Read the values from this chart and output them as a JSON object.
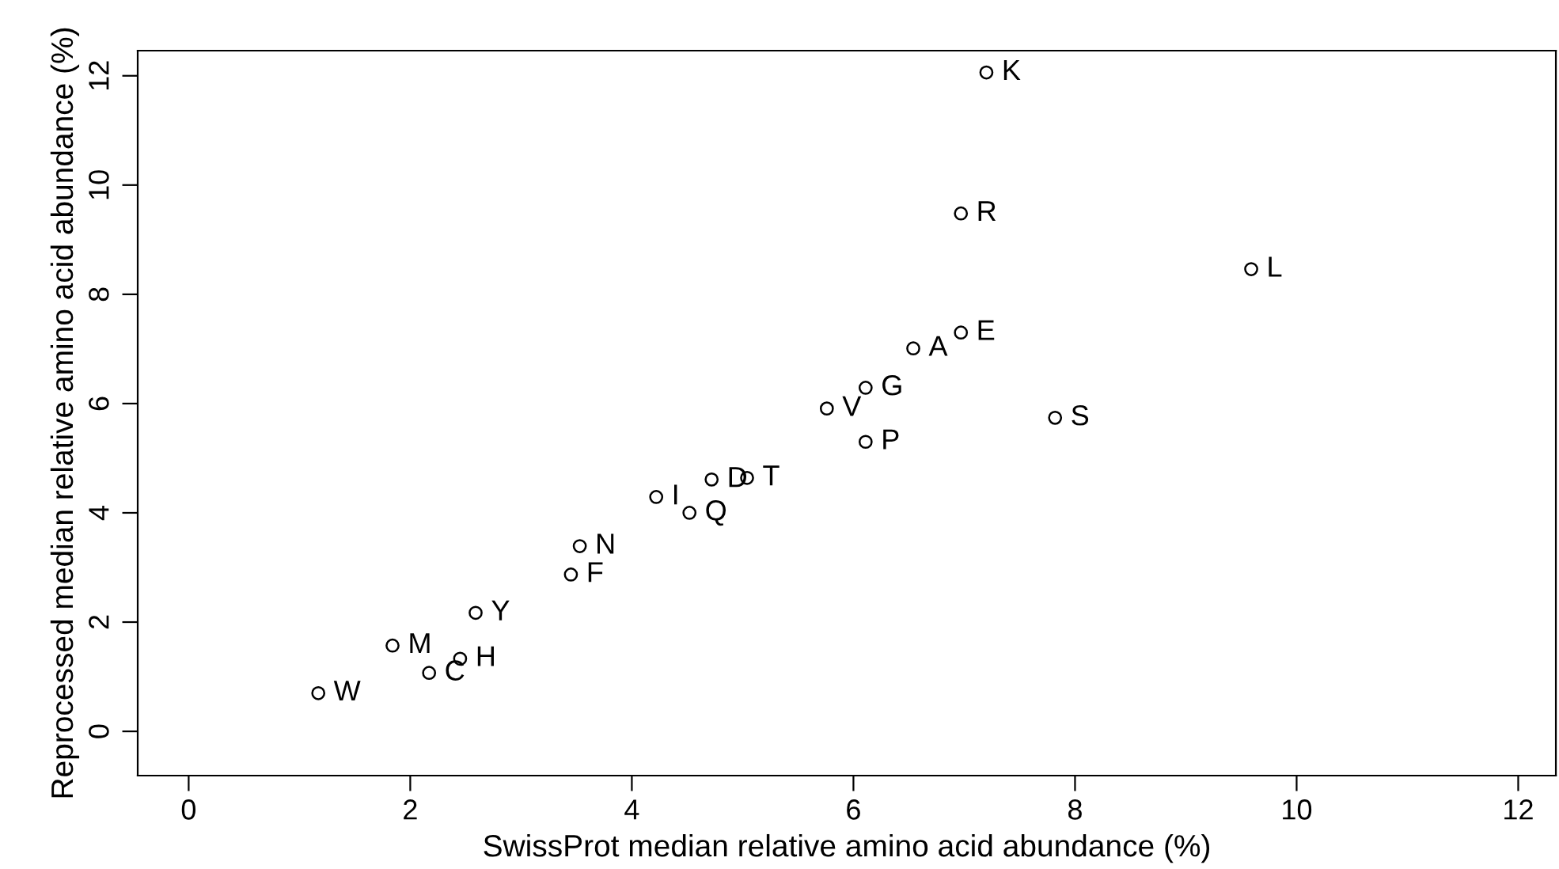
{
  "chart_data": {
    "type": "scatter",
    "xlabel": "SwissProt median relative amino acid abundance (%)",
    "ylabel": "Reprocessed median relative amino acid abundance (%)",
    "x": [
      7.2,
      6.97,
      9.59,
      6.97,
      6.54,
      6.11,
      5.76,
      7.82,
      6.11,
      4.72,
      5.04,
      4.22,
      4.52,
      3.53,
      3.45,
      2.59,
      1.84,
      2.45,
      2.17,
      1.17
    ],
    "values": [
      12.06,
      9.48,
      8.46,
      7.3,
      7.01,
      6.29,
      5.91,
      5.74,
      5.3,
      4.61,
      4.64,
      4.29,
      4.0,
      3.39,
      2.87,
      2.17,
      1.57,
      1.33,
      1.07,
      0.7
    ],
    "color": "#000000",
    "marker": "circle",
    "annotations": [
      {
        "text": "K",
        "x": 7.2,
        "y": 12.06
      },
      {
        "text": "R",
        "x": 6.97,
        "y": 9.48
      },
      {
        "text": "L",
        "x": 9.59,
        "y": 8.46
      },
      {
        "text": "E",
        "x": 6.97,
        "y": 7.3
      },
      {
        "text": "A",
        "x": 6.54,
        "y": 7.01
      },
      {
        "text": "G",
        "x": 6.11,
        "y": 6.29
      },
      {
        "text": "V",
        "x": 5.76,
        "y": 5.91
      },
      {
        "text": "S",
        "x": 7.82,
        "y": 5.74
      },
      {
        "text": "P",
        "x": 6.11,
        "y": 5.3
      },
      {
        "text": "D",
        "x": 4.72,
        "y": 4.61
      },
      {
        "text": "T",
        "x": 5.04,
        "y": 4.64
      },
      {
        "text": "I",
        "x": 4.22,
        "y": 4.29
      },
      {
        "text": "Q",
        "x": 4.52,
        "y": 4.0
      },
      {
        "text": "N",
        "x": 3.53,
        "y": 3.39
      },
      {
        "text": "F",
        "x": 3.45,
        "y": 2.87
      },
      {
        "text": "Y",
        "x": 2.59,
        "y": 2.17
      },
      {
        "text": "M",
        "x": 1.84,
        "y": 1.57
      },
      {
        "text": "H",
        "x": 2.45,
        "y": 1.33
      },
      {
        "text": "C",
        "x": 2.17,
        "y": 1.07
      },
      {
        "text": "W",
        "x": 1.17,
        "y": 0.7
      }
    ],
    "xlim": [
      -0.46,
      12.34
    ],
    "ylim": [
      -0.81,
      12.46
    ],
    "xticks": [
      0,
      2,
      4,
      6,
      8,
      10,
      12
    ],
    "yticks": [
      0,
      2,
      4,
      6,
      8,
      10,
      12
    ],
    "grid": false,
    "legend": false
  }
}
